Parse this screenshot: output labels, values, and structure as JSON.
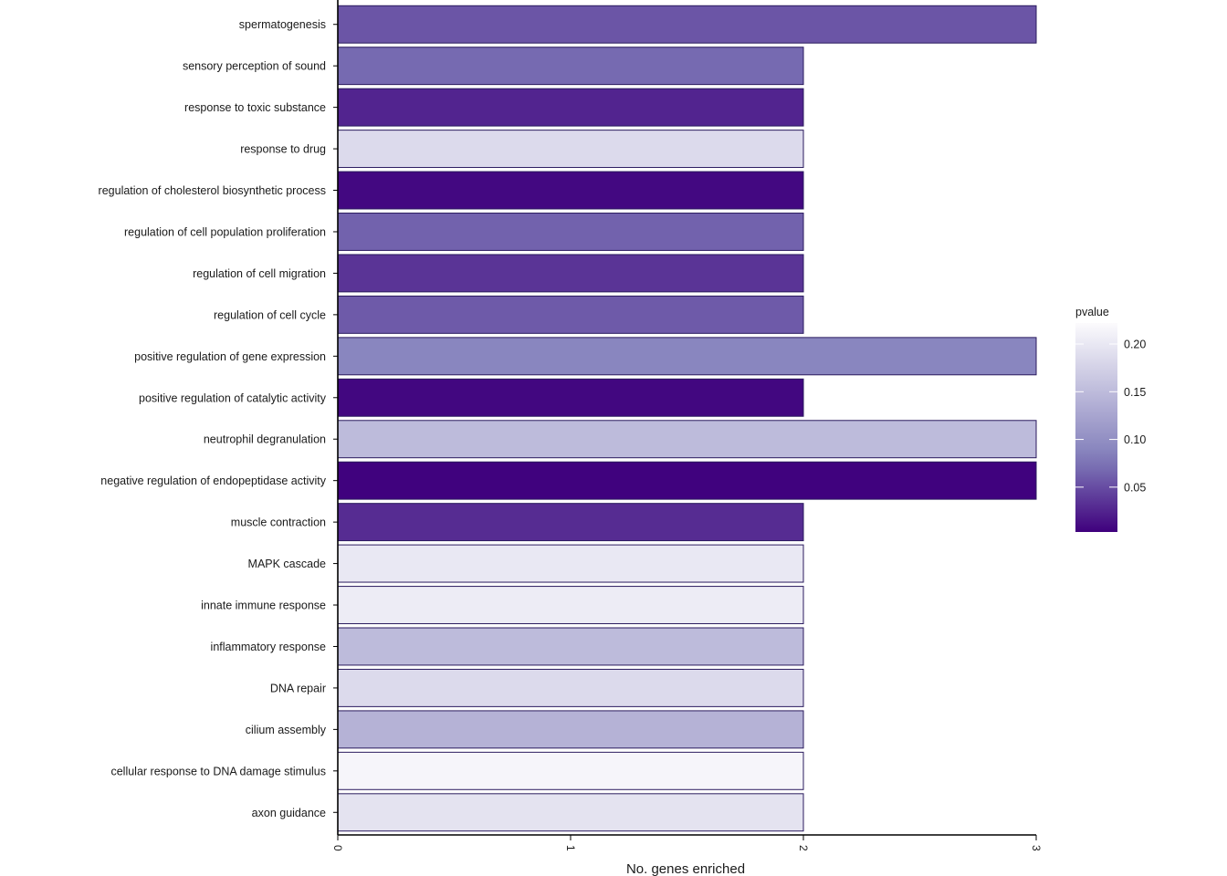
{
  "chart_data": {
    "type": "bar",
    "orientation": "horizontal",
    "xlabel": "No. genes enriched",
    "ylabel": "",
    "xlim": [
      0,
      3
    ],
    "x_ticks": [
      "0",
      "1",
      "2",
      "3"
    ],
    "grid": false,
    "legend": {
      "title": "pvalue",
      "placement": "right",
      "type": "colorbar",
      "range": [
        0.003,
        0.222
      ],
      "ticks": [
        {
          "value": 0.05,
          "label": "0.05"
        },
        {
          "value": 0.1,
          "label": "0.10"
        },
        {
          "value": 0.15,
          "label": "0.15"
        },
        {
          "value": 0.2,
          "label": "0.20"
        }
      ],
      "color_low": "#3f007d",
      "color_high": "#fcfbfd"
    },
    "categories": [
      "spermatogenesis",
      "sensory perception of sound",
      "response to toxic substance",
      "response to drug",
      "regulation of cholesterol biosynthetic process",
      "regulation of cell population proliferation",
      "regulation of cell migration",
      "regulation of cell cycle",
      "positive regulation of gene expression",
      "positive regulation of catalytic activity",
      "neutrophil degranulation",
      "negative regulation of endopeptidase activity",
      "muscle contraction",
      "MAPK cascade",
      "innate immune response",
      "inflammatory response",
      "DNA repair",
      "cilium assembly",
      "cellular response to DNA damage stimulus",
      "axon guidance"
    ],
    "values": [
      3,
      2,
      2,
      2,
      2,
      2,
      2,
      2,
      3,
      2,
      3,
      3,
      2,
      2,
      2,
      2,
      2,
      2,
      2,
      2
    ],
    "pvalues": [
      0.055,
      0.068,
      0.025,
      0.185,
      0.008,
      0.063,
      0.035,
      0.058,
      0.09,
      0.007,
      0.15,
      0.004,
      0.03,
      0.2,
      0.205,
      0.15,
      0.185,
      0.14,
      0.215,
      0.195
    ]
  }
}
